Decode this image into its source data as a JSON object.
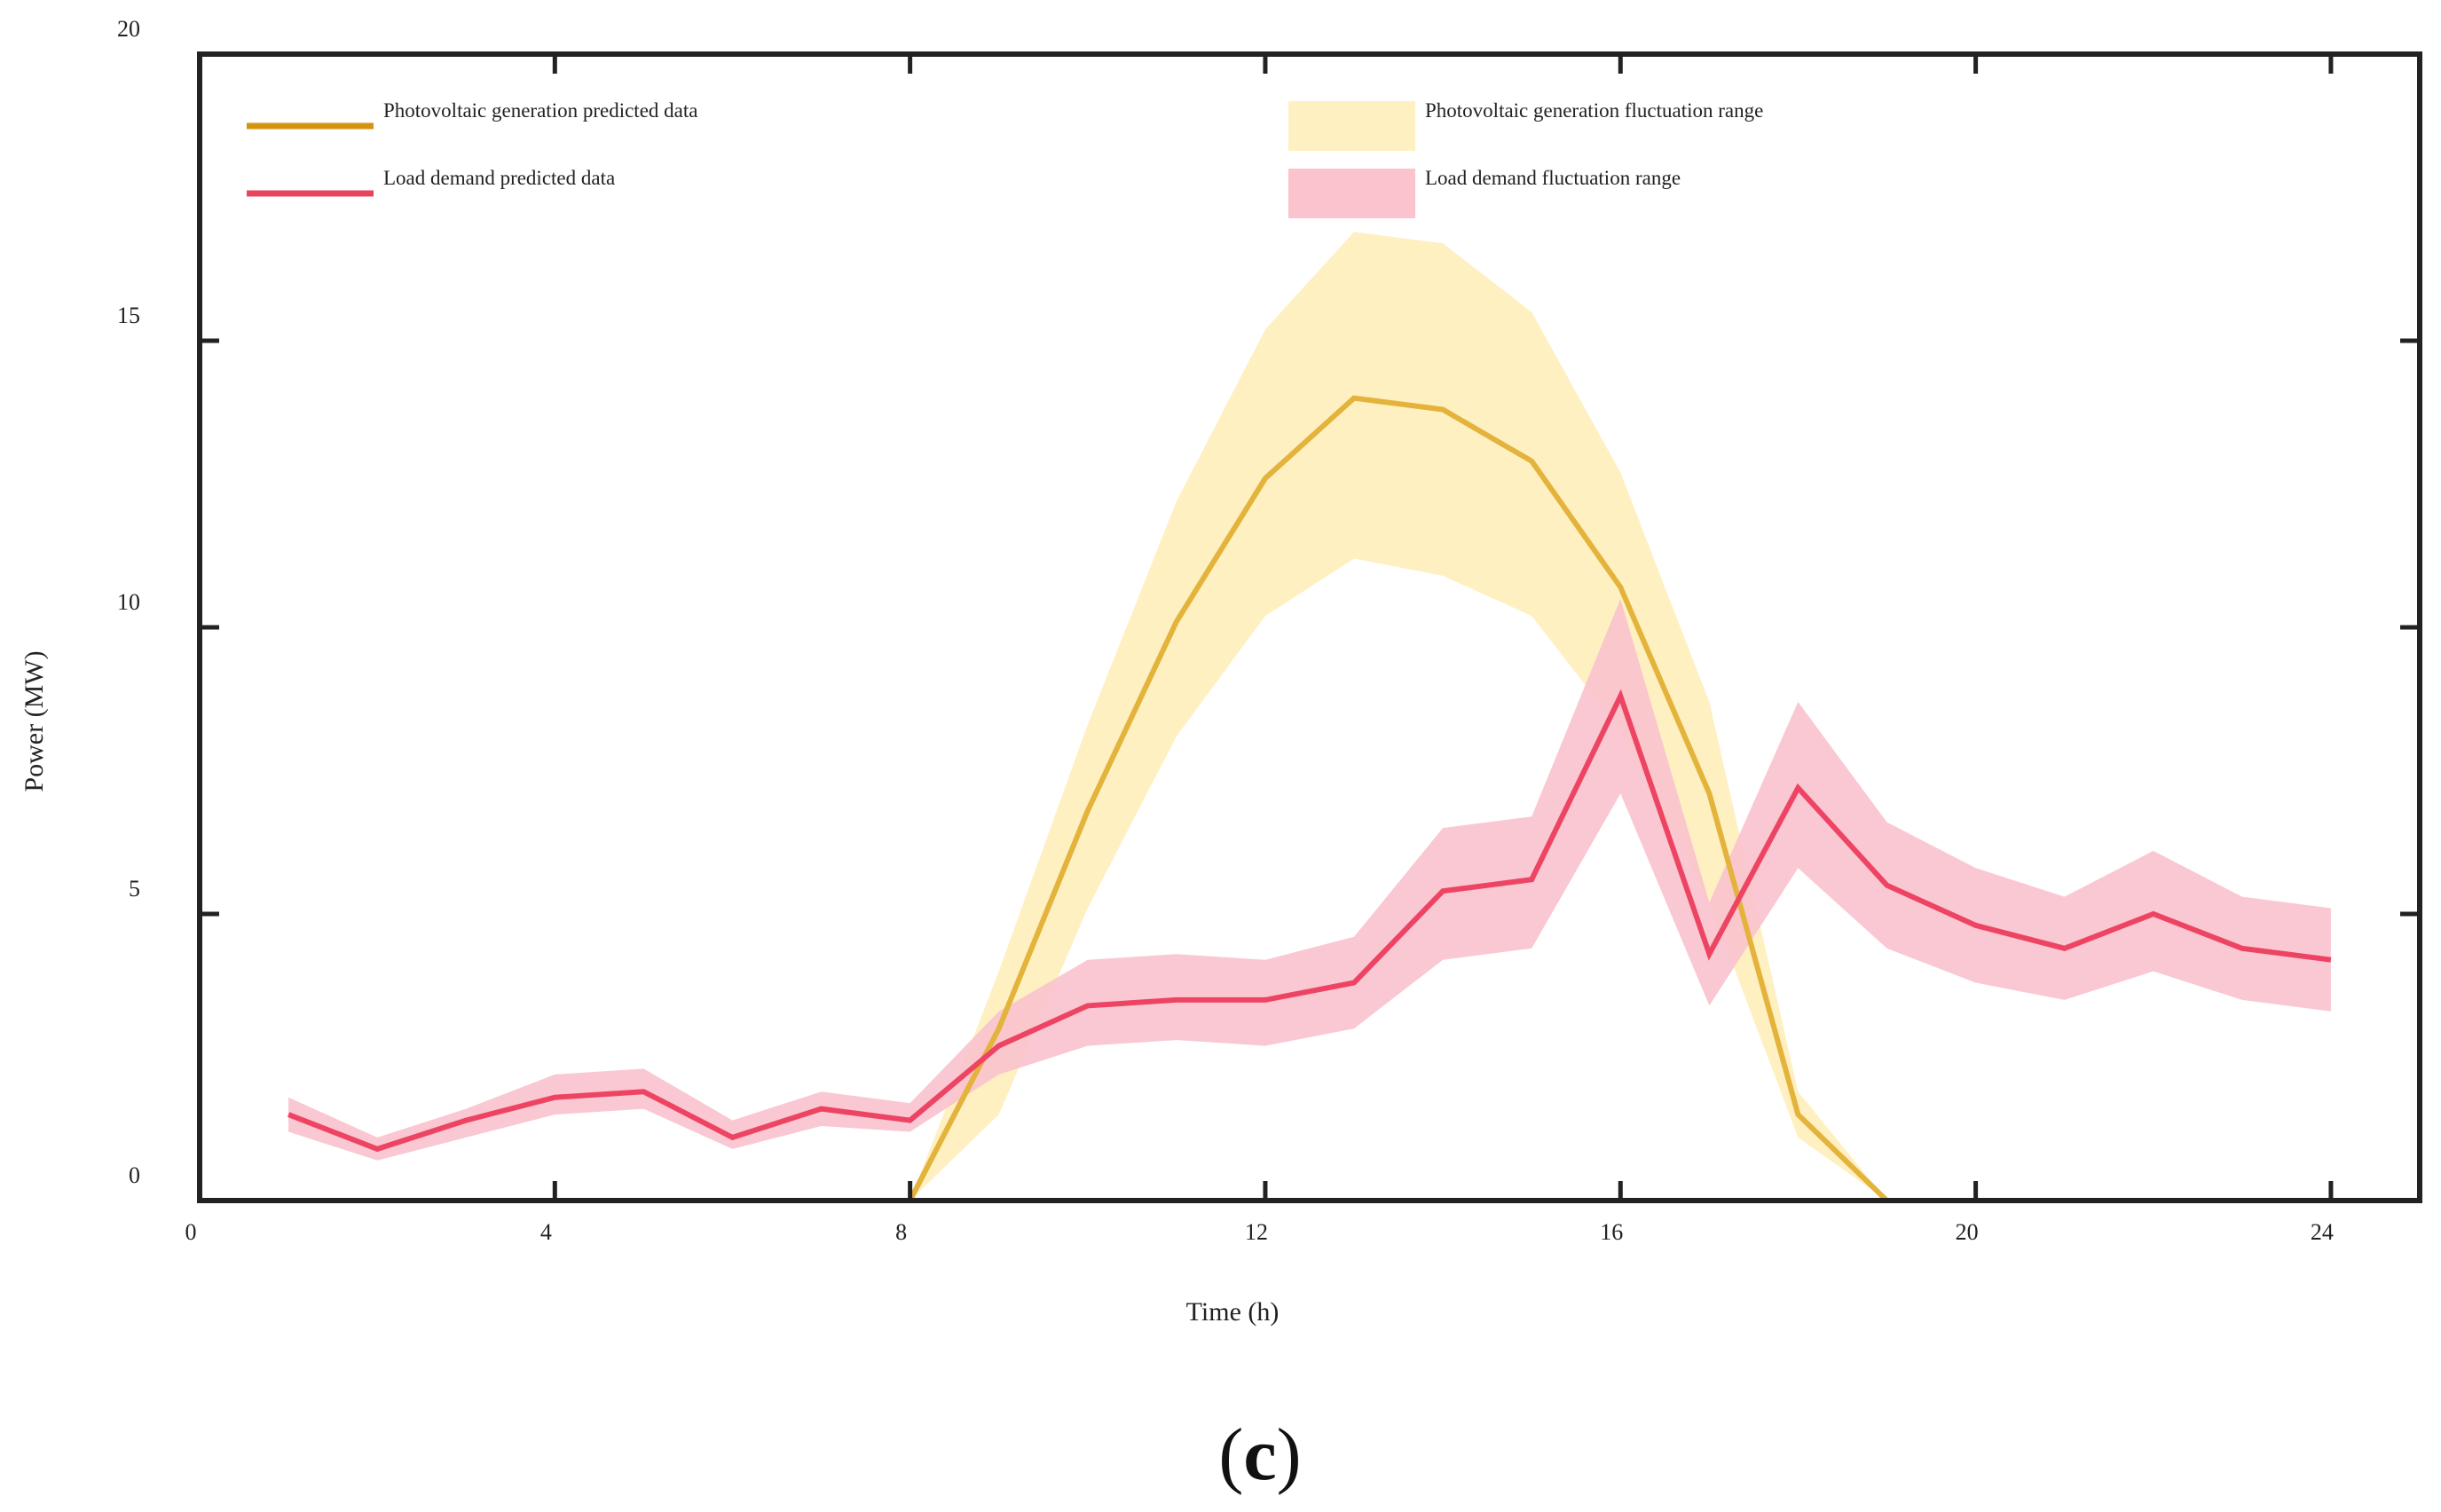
{
  "chart_data": {
    "type": "line",
    "panel_label": "(c)",
    "panel_letter": "c",
    "title": "",
    "xlabel": "Time (h)",
    "ylabel": "Power (MW)",
    "xlim": [
      0,
      25
    ],
    "ylim": [
      0,
      20
    ],
    "x_ticks": [
      0,
      4,
      8,
      12,
      16,
      20,
      24
    ],
    "y_ticks": [
      0,
      5,
      10,
      15,
      20
    ],
    "legend_position": "top",
    "colors": {
      "pv_line": "#E3B33B",
      "pv_band": "#FFF0C2",
      "pv_legend_line": "#D4930F",
      "pv_legend_patch": "#FFF0C2",
      "load_line": "#EE4463",
      "load_band": "#FAC3CE",
      "load_legend_line": "#E8445F",
      "load_legend_patch": "#FAC3CE",
      "axis": "#222222"
    },
    "legend": [
      {
        "label": "Photovoltaic generation predicted data",
        "kind": "line",
        "series": "pv"
      },
      {
        "label": "Load demand predicted data",
        "kind": "line",
        "series": "load"
      },
      {
        "label": "Photovoltaic generation fluctuation range",
        "kind": "band",
        "series": "pv"
      },
      {
        "label": "Load demand fluctuation range",
        "kind": "band",
        "series": "load"
      }
    ],
    "x": [
      1,
      2,
      3,
      4,
      5,
      6,
      7,
      8,
      9,
      10,
      11,
      12,
      13,
      14,
      15,
      16,
      17,
      18,
      19,
      20,
      21,
      22,
      23,
      24
    ],
    "series": [
      {
        "name": "Photovoltaic generation predicted data",
        "key": "pv",
        "values": [
          0,
          0,
          0,
          0,
          0,
          0,
          0,
          0,
          3.0,
          6.8,
          10.1,
          12.6,
          14.0,
          13.8,
          12.9,
          10.7,
          7.1,
          1.5,
          0,
          0,
          0,
          0,
          0,
          0
        ],
        "band_label": "Photovoltaic generation fluctuation range",
        "band_lower": [
          0,
          0,
          0,
          0,
          0,
          0,
          0,
          0,
          1.5,
          5.1,
          8.1,
          10.2,
          11.2,
          10.9,
          10.2,
          8.2,
          5.2,
          1.1,
          0,
          0,
          0,
          0,
          0,
          0
        ],
        "band_upper": [
          0,
          0,
          0,
          0,
          0,
          0,
          0,
          0,
          4.0,
          8.3,
          12.2,
          15.2,
          16.9,
          16.7,
          15.5,
          12.7,
          8.7,
          1.9,
          0,
          0,
          0,
          0,
          0,
          0
        ]
      },
      {
        "name": "Load demand predicted data",
        "key": "load",
        "values": [
          1.5,
          0.9,
          1.4,
          1.8,
          1.9,
          1.1,
          1.6,
          1.4,
          2.7,
          3.4,
          3.5,
          3.5,
          3.8,
          5.4,
          5.6,
          8.8,
          4.3,
          7.2,
          5.5,
          4.8,
          4.4,
          5.0,
          4.4,
          4.2
        ],
        "band_label": "Load demand fluctuation range",
        "band_lower": [
          1.2,
          0.7,
          1.1,
          1.5,
          1.6,
          0.9,
          1.3,
          1.2,
          2.2,
          2.7,
          2.8,
          2.7,
          3.0,
          4.2,
          4.4,
          7.1,
          3.4,
          5.8,
          4.4,
          3.8,
          3.5,
          4.0,
          3.5,
          3.3
        ],
        "band_upper": [
          1.8,
          1.1,
          1.6,
          2.2,
          2.3,
          1.4,
          1.9,
          1.7,
          3.3,
          4.2,
          4.3,
          4.2,
          4.6,
          6.5,
          6.7,
          10.5,
          5.2,
          8.7,
          6.6,
          5.8,
          5.3,
          6.1,
          5.3,
          5.1
        ]
      }
    ]
  }
}
